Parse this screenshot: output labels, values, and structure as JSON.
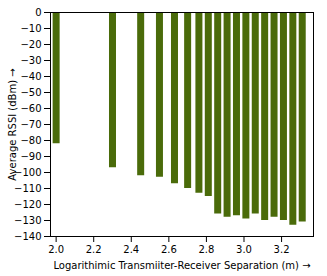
{
  "chart_data": {
    "type": "bar",
    "x": [
      2.0,
      2.3,
      2.45,
      2.55,
      2.63,
      2.7,
      2.76,
      2.81,
      2.86,
      2.91,
      2.96,
      3.01,
      3.06,
      3.11,
      3.16,
      3.21,
      3.26,
      3.31
    ],
    "values": [
      -82,
      -97,
      -102,
      -103,
      -107,
      -110,
      -113,
      -115,
      -126,
      -128,
      -127,
      -129,
      -126,
      -130,
      -128,
      -130,
      -133,
      -131
    ],
    "color": "#4a6b0a",
    "xlabel": "Logarithimic Transmiiter-Receiver Separation (m)",
    "ylabel": "Average RSSI (dBm)",
    "xlim": [
      1.97,
      3.37
    ],
    "ylim": [
      -140,
      0
    ],
    "xticks": [
      {
        "value": 2.0,
        "label": "2.0"
      },
      2.2,
      2.4,
      2.6,
      2.8,
      {
        "value": 3.0,
        "label": "3.0"
      },
      3.2
    ],
    "yticks": [
      0,
      -10,
      -20,
      -30,
      -40,
      -50,
      -60,
      -70,
      -80,
      -90,
      -100,
      -110,
      -120,
      -130,
      -140
    ],
    "grid": false
  }
}
